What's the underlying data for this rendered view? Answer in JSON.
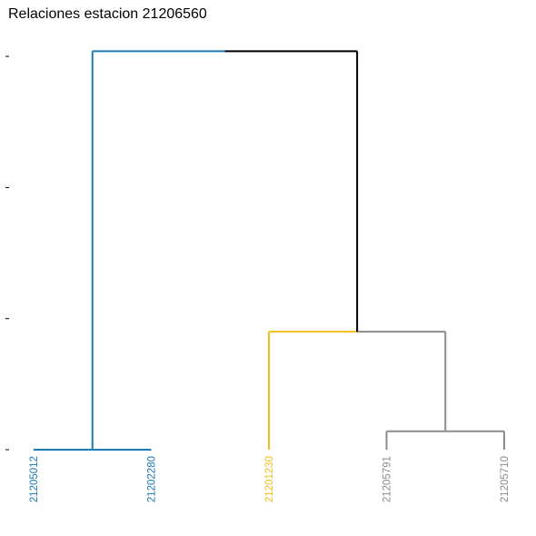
{
  "title": "Relaciones estacion 21206560",
  "colors": {
    "background": "#ffffff",
    "axis": "#000000",
    "root": "#000000",
    "cluster_blue": "#1a7ab5",
    "cluster_yellow": "#f0be1c",
    "cluster_gray": "#8c8c8c"
  },
  "chart_data": {
    "type": "dendrogram",
    "title": "Relaciones estacion 21206560",
    "leaves": [
      {
        "label": "21205012",
        "color": "cluster_blue"
      },
      {
        "label": "21202280",
        "color": "cluster_blue"
      },
      {
        "label": "21201230",
        "color": "cluster_yellow"
      },
      {
        "label": "21205791",
        "color": "cluster_gray"
      },
      {
        "label": "21205710",
        "color": "cluster_gray"
      }
    ],
    "y_ticks": [
      0,
      1,
      2,
      3
    ],
    "y_tick_labels_visible": false,
    "merges": [
      {
        "left": "leaf:3",
        "right": "leaf:4",
        "height": 0.14,
        "color": "cluster_gray"
      },
      {
        "left": "leaf:0",
        "right": "leaf:1",
        "height": 0.0,
        "color": "cluster_blue"
      },
      {
        "left": "leaf:2",
        "right": "node:0",
        "height": 0.9,
        "color": "cluster_gray",
        "left_color": "cluster_yellow"
      },
      {
        "left": "node:1",
        "right": "node:2",
        "height": 3.04,
        "color": "root",
        "left_color": "cluster_blue"
      }
    ],
    "grid": false,
    "legend": "none"
  }
}
